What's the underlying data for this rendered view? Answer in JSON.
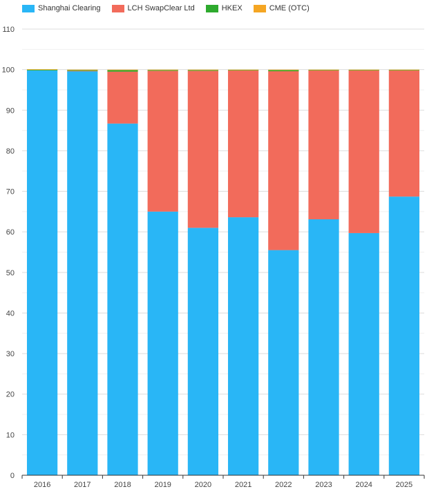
{
  "chart_data": {
    "type": "bar",
    "stacked": true,
    "title": "",
    "xlabel": "",
    "ylabel": "",
    "categories": [
      "2016",
      "2017",
      "2018",
      "2019",
      "2020",
      "2021",
      "2022",
      "2023",
      "2024",
      "2025"
    ],
    "ylim": [
      0,
      110
    ],
    "yticks": [
      0,
      10,
      20,
      30,
      40,
      50,
      60,
      70,
      80,
      90,
      100,
      110
    ],
    "grid": true,
    "legend_position": "top-left",
    "series": [
      {
        "name": "Shanghai Clearing",
        "color": "#29b6f6",
        "values": [
          99.8,
          99.6,
          86.7,
          65.0,
          61.0,
          63.6,
          55.5,
          63.1,
          59.7,
          68.7
        ]
      },
      {
        "name": "LCH SwapClear Ltd",
        "color": "#f26b5b",
        "values": [
          0.0,
          0.1,
          12.8,
          34.7,
          38.7,
          36.2,
          44.1,
          36.7,
          40.1,
          31.1
        ]
      },
      {
        "name": "HKEX",
        "color": "#2eaa2e",
        "values": [
          0.2,
          0.2,
          0.4,
          0.2,
          0.2,
          0.1,
          0.3,
          0.1,
          0.1,
          0.1
        ]
      },
      {
        "name": "CME (OTC)",
        "color": "#f5a623",
        "values": [
          0.1,
          0.1,
          0.1,
          0.1,
          0.1,
          0.1,
          0.1,
          0.1,
          0.1,
          0.1
        ]
      }
    ]
  }
}
